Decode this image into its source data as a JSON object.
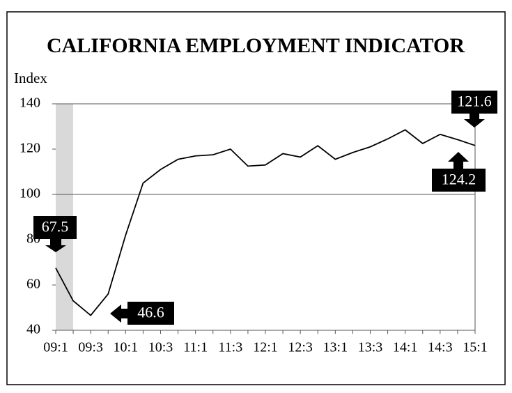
{
  "chart_data": {
    "type": "line",
    "title": "CALIFORNIA EMPLOYMENT INDICATOR",
    "y_label": "Index",
    "categories": [
      "09:1",
      null,
      "09:3",
      null,
      "10:1",
      null,
      "10:3",
      null,
      "11:1",
      null,
      "11:3",
      null,
      "12:1",
      null,
      "12:3",
      null,
      "13:1",
      null,
      "13:3",
      null,
      "14:1",
      null,
      "14:3",
      null,
      "15:1"
    ],
    "series": [
      {
        "name": "Index",
        "color": "#000000",
        "values": [
          67.5,
          53,
          46.6,
          56,
          82,
          105,
          111,
          115.5,
          117,
          117.5,
          120,
          112.5,
          113,
          118,
          116.5,
          121.5,
          115.5,
          118.5,
          121,
          124.5,
          128.5,
          122.5,
          126.5,
          124.2,
          121.6
        ]
      }
    ],
    "ylim": [
      40,
      140
    ],
    "yticks": [
      40,
      60,
      80,
      100,
      120,
      140
    ],
    "reference_line": 100
  }
}
